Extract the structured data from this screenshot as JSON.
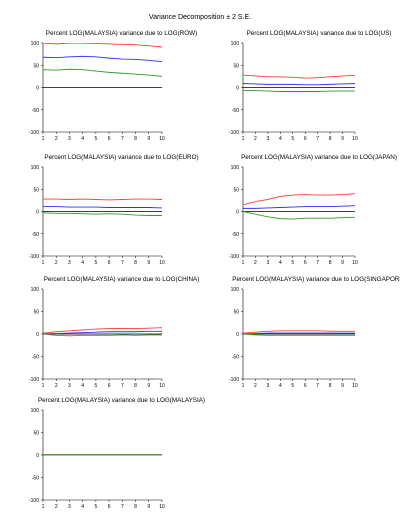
{
  "title": "Variance Decomposition ± 2 S.E.",
  "colors": {
    "upper": "#ff3b3b",
    "estimate": "#3030ff",
    "lower": "#2e9e2e",
    "zero": "#000000",
    "axis": "#000000"
  },
  "chart_data": [
    {
      "type": "line",
      "title": "Percent LOG(MALAYSIA) variance due to LOG(ROW)",
      "x": [
        1,
        2,
        3,
        4,
        5,
        6,
        7,
        8,
        9,
        10
      ],
      "ylim": [
        -100,
        100
      ],
      "yticks": [
        -100,
        -50,
        0,
        50,
        100
      ],
      "series": [
        {
          "values": [
            100,
            98,
            100,
            100,
            99,
            98,
            97,
            96,
            94,
            91
          ]
        },
        {
          "values": [
            68,
            67,
            69,
            70,
            69,
            66,
            64,
            63,
            61,
            58
          ]
        },
        {
          "values": [
            40,
            39,
            41,
            40,
            37,
            34,
            32,
            30,
            28,
            25
          ]
        }
      ]
    },
    {
      "type": "line",
      "title": "Percent LOG(MALAYSIA) variance due to LOG(US)",
      "x": [
        1,
        2,
        3,
        4,
        5,
        6,
        7,
        8,
        9,
        10
      ],
      "ylim": [
        -100,
        100
      ],
      "yticks": [
        -100,
        -50,
        0,
        50,
        100
      ],
      "series": [
        {
          "values": [
            28,
            26,
            24,
            24,
            23,
            21,
            22,
            24,
            26,
            27
          ]
        },
        {
          "values": [
            9,
            8,
            7,
            7,
            7,
            6,
            6,
            7,
            8,
            9
          ]
        },
        {
          "values": [
            -7,
            -7,
            -8,
            -9,
            -9,
            -9,
            -9,
            -8,
            -8,
            -8
          ]
        }
      ]
    },
    {
      "type": "line",
      "title": "Percent LOG(MALAYSIA) variance due to LOG(EURO)",
      "x": [
        1,
        2,
        3,
        4,
        5,
        6,
        7,
        8,
        9,
        10
      ],
      "ylim": [
        -100,
        100
      ],
      "yticks": [
        -100,
        -50,
        0,
        50,
        100
      ],
      "series": [
        {
          "values": [
            28,
            28,
            27,
            28,
            27,
            26,
            27,
            28,
            28,
            27
          ]
        },
        {
          "values": [
            11,
            11,
            10,
            10,
            10,
            9,
            9,
            9,
            9,
            8
          ]
        },
        {
          "values": [
            -3,
            -4,
            -4,
            -5,
            -6,
            -5,
            -6,
            -8,
            -9,
            -9
          ]
        }
      ]
    },
    {
      "type": "line",
      "title": "Percent LOG(MALAYSIA) variance due to LOG(JAPAN)",
      "x": [
        1,
        2,
        3,
        4,
        5,
        6,
        7,
        8,
        9,
        10
      ],
      "ylim": [
        -100,
        100
      ],
      "yticks": [
        -100,
        -50,
        0,
        50,
        100
      ],
      "series": [
        {
          "values": [
            15,
            22,
            27,
            34,
            37,
            38,
            37,
            37,
            38,
            40
          ]
        },
        {
          "values": [
            7,
            7,
            8,
            9,
            10,
            11,
            11,
            11,
            12,
            13
          ]
        },
        {
          "values": [
            0,
            -6,
            -12,
            -16,
            -17,
            -15,
            -15,
            -15,
            -14,
            -13
          ]
        }
      ]
    },
    {
      "type": "line",
      "title": "Percent LOG(MALAYSIA) variance due to LOG(CHINA)",
      "x": [
        1,
        2,
        3,
        4,
        5,
        6,
        7,
        8,
        9,
        10
      ],
      "ylim": [
        -100,
        100
      ],
      "yticks": [
        -100,
        -50,
        0,
        50,
        100
      ],
      "series": [
        {
          "values": [
            2,
            5,
            7,
            9,
            11,
            12,
            12,
            12,
            13,
            14
          ]
        },
        {
          "values": [
            0,
            1,
            2,
            3,
            4,
            5,
            5,
            5,
            6,
            6
          ]
        },
        {
          "values": [
            0,
            -3,
            -4,
            -3,
            -3,
            -3,
            -2,
            -3,
            -2,
            -2
          ]
        }
      ]
    },
    {
      "type": "line",
      "title": "Percent LOG(MALAYSIA) variance due to LOG(SINGAPORE)",
      "x": [
        1,
        2,
        3,
        4,
        5,
        6,
        7,
        8,
        9,
        10
      ],
      "ylim": [
        -100,
        100
      ],
      "yticks": [
        -100,
        -50,
        0,
        50,
        100
      ],
      "series": [
        {
          "values": [
            2,
            4,
            6,
            7,
            7,
            7,
            7,
            6,
            6,
            6
          ]
        },
        {
          "values": [
            0,
            1,
            2,
            2,
            2,
            2,
            2,
            2,
            2,
            2
          ]
        },
        {
          "values": [
            0,
            -2,
            -3,
            -3,
            -3,
            -3,
            -3,
            -3,
            -3,
            -3
          ]
        }
      ]
    },
    {
      "type": "line",
      "title": "Percent LOG(MALAYSIA) variance due to LOG(MALAYSIA)",
      "x": [
        1,
        2,
        3,
        4,
        5,
        6,
        7,
        8,
        9,
        10
      ],
      "ylim": [
        -100,
        100
      ],
      "yticks": [
        -100,
        -50,
        0,
        50,
        100
      ],
      "series": [
        {
          "values": [
            1,
            1,
            1,
            1,
            1,
            1,
            1,
            1,
            1,
            1
          ]
        },
        {
          "values": [
            0.5,
            0.5,
            0.5,
            0.5,
            0.5,
            0.5,
            0.5,
            0.5,
            0.5,
            0.5
          ]
        },
        {
          "values": [
            0,
            0,
            0,
            0,
            0,
            0,
            0,
            0,
            0,
            0
          ]
        }
      ]
    }
  ]
}
